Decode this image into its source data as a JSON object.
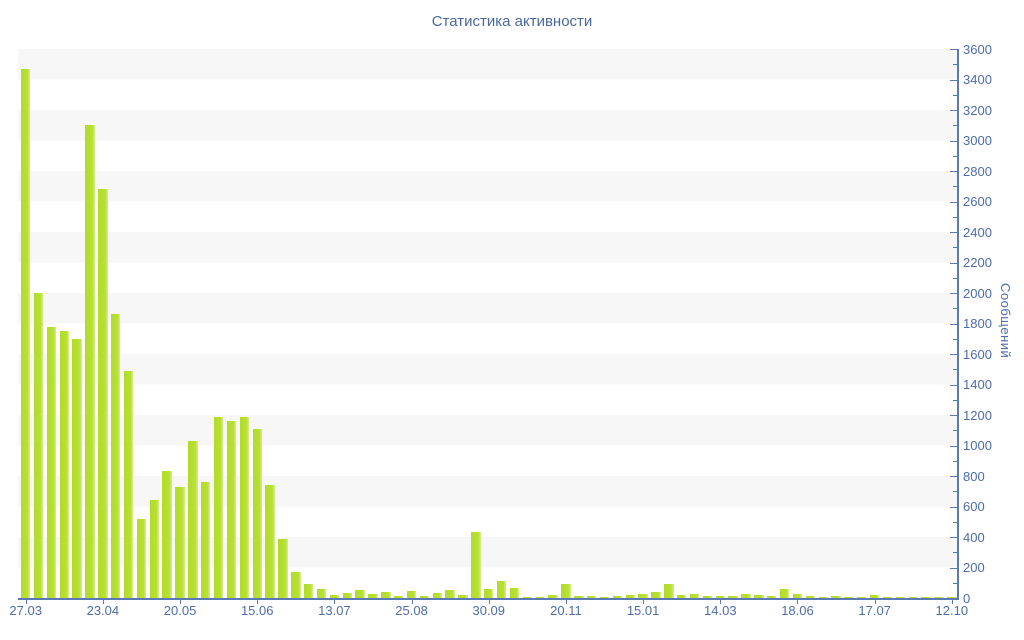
{
  "chart_data": {
    "type": "bar",
    "title": "Статистика активности",
    "xlabel": "",
    "ylabel": "Сообщений",
    "ylim": [
      0,
      3600
    ],
    "y_tick_major_step": 200,
    "y_tick_minor_step": 100,
    "legend": "none",
    "grid": "striped-horizontal-bands",
    "x_label_every_n_bars": 6,
    "x_tick_labels": [
      "27.03",
      "23.04",
      "20.05",
      "15.06",
      "13.07",
      "25.08",
      "30.09",
      "20.11",
      "15.01",
      "14.03",
      "18.06",
      "17.07",
      "12.10"
    ],
    "values": [
      3470,
      2000,
      1780,
      1750,
      1700,
      3100,
      2680,
      1860,
      1490,
      520,
      640,
      830,
      730,
      1030,
      760,
      1190,
      1160,
      1190,
      1110,
      740,
      390,
      170,
      90,
      60,
      20,
      35,
      50,
      25,
      40,
      10,
      45,
      10,
      35,
      50,
      20,
      430,
      60,
      110,
      65,
      5,
      5,
      20,
      90,
      15,
      15,
      8,
      13,
      18,
      25,
      40,
      90,
      20,
      25,
      10,
      12,
      15,
      25,
      20,
      10,
      60,
      25,
      10,
      8,
      12,
      8,
      8,
      18,
      8,
      8,
      6,
      6,
      8,
      5
    ],
    "colors": {
      "bar": "#b5df2e",
      "bar_highlight": "#d6ee8c",
      "axis": "#5b79b6",
      "text": "#4d6cae",
      "title_text": "#4a679e",
      "stripe": "#f7f7f7",
      "background": "#ffffff"
    }
  }
}
